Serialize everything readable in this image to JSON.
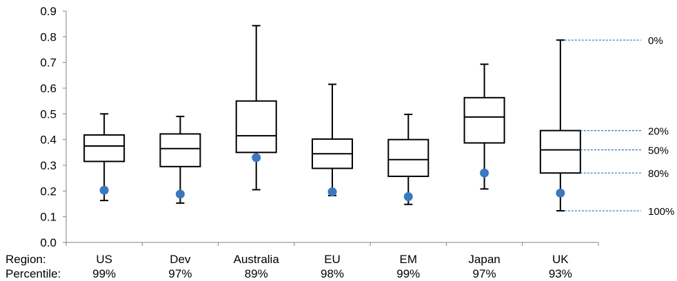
{
  "chart_data": {
    "type": "boxplot",
    "title": "",
    "xlabel": "",
    "ylabel": "",
    "ylim": [
      0,
      0.9
    ],
    "yticks": [
      "0.0",
      "0.1",
      "0.2",
      "0.3",
      "0.4",
      "0.5",
      "0.6",
      "0.7",
      "0.8",
      "0.9"
    ],
    "grid": false,
    "row_labels": {
      "region": "Region:",
      "percentile": "Percentile:"
    },
    "categories": [
      "US",
      "Dev",
      "Australia",
      "EU",
      "EM",
      "Japan",
      "UK"
    ],
    "percentiles": [
      "99%",
      "97%",
      "89%",
      "98%",
      "99%",
      "97%",
      "93%"
    ],
    "boxes": [
      {
        "name": "US",
        "whisker_high": 0.5,
        "q3": 0.418,
        "median": 0.375,
        "q1": 0.315,
        "whisker_low": 0.163,
        "current": 0.203
      },
      {
        "name": "Dev",
        "whisker_high": 0.49,
        "q3": 0.422,
        "median": 0.365,
        "q1": 0.295,
        "whisker_low": 0.153,
        "current": 0.188
      },
      {
        "name": "Australia",
        "whisker_high": 0.843,
        "q3": 0.55,
        "median": 0.415,
        "q1": 0.35,
        "whisker_low": 0.205,
        "current": 0.33
      },
      {
        "name": "EU",
        "whisker_high": 0.615,
        "q3": 0.402,
        "median": 0.345,
        "q1": 0.288,
        "whisker_low": 0.182,
        "current": 0.197
      },
      {
        "name": "EM",
        "whisker_high": 0.498,
        "q3": 0.4,
        "median": 0.322,
        "q1": 0.257,
        "whisker_low": 0.148,
        "current": 0.178
      },
      {
        "name": "Japan",
        "whisker_high": 0.693,
        "q3": 0.563,
        "median": 0.488,
        "q1": 0.387,
        "whisker_low": 0.208,
        "current": 0.27
      },
      {
        "name": "UK",
        "whisker_high": 0.787,
        "q3": 0.435,
        "median": 0.36,
        "q1": 0.27,
        "whisker_low": 0.123,
        "current": 0.192
      }
    ],
    "annotation_labels": {
      "max": "0%",
      "q3": "20%",
      "median": "50%",
      "q1": "80%",
      "min": "100%"
    },
    "annotated_category": "UK",
    "colors": {
      "box_stroke": "#000000",
      "current_dot": "#3a78c0",
      "annotation_line": "#2e6db4",
      "axis": "#808080"
    }
  }
}
